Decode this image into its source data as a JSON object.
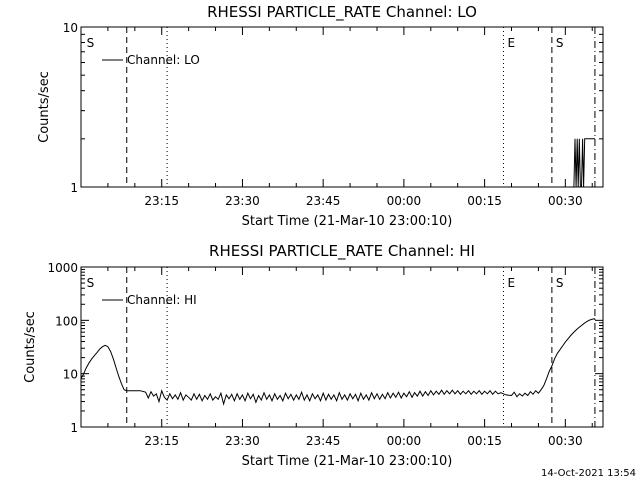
{
  "footer": {
    "timestamp": "14-Oct-2021 13:54"
  },
  "chart_data": [
    {
      "type": "line",
      "title": "RHESSI PARTICLE_RATE Channel: LO",
      "xlabel": "Start Time (21-Mar-10 23:00:10)",
      "ylabel": "Counts/sec",
      "yscale": "log",
      "ylim": [
        1,
        10
      ],
      "xlim_minutes": [
        0,
        97
      ],
      "y_ticks": [
        {
          "value": 1,
          "label": "1"
        },
        {
          "value": 10,
          "label": "10"
        }
      ],
      "x_ticks": [
        {
          "minute": 15,
          "label": "23:15"
        },
        {
          "minute": 30,
          "label": "23:30"
        },
        {
          "minute": 45,
          "label": "23:45"
        },
        {
          "minute": 60,
          "label": "00:00"
        },
        {
          "minute": 75,
          "label": "00:15"
        },
        {
          "minute": 90,
          "label": "00:30"
        }
      ],
      "legend": {
        "label": "Channel: LO",
        "position": "top-left"
      },
      "markers": [
        {
          "minute": 0.3,
          "label": "S",
          "style": "none"
        },
        {
          "minute": 8.5,
          "label": "",
          "style": "dashed"
        },
        {
          "minute": 16,
          "label": "",
          "style": "dotted"
        },
        {
          "minute": 78.5,
          "label": "E",
          "style": "dotted"
        },
        {
          "minute": 87.5,
          "label": "S",
          "style": "dashed"
        },
        {
          "minute": 95.5,
          "label": "",
          "style": "dashdot"
        }
      ],
      "series": [
        {
          "name": "Channel: LO",
          "points": [
            [
              91.6,
              1
            ],
            [
              91.8,
              2
            ],
            [
              92.0,
              1
            ],
            [
              92.2,
              2
            ],
            [
              92.4,
              1
            ],
            [
              92.6,
              2
            ],
            [
              92.8,
              1
            ],
            [
              93.0,
              1
            ],
            [
              93.2,
              2
            ],
            [
              93.4,
              1
            ],
            [
              93.6,
              2
            ],
            [
              93.8,
              2
            ],
            [
              94.0,
              2
            ],
            [
              94.6,
              2
            ],
            [
              95.0,
              2
            ],
            [
              95.5,
              2
            ]
          ]
        }
      ]
    },
    {
      "type": "line",
      "title": "RHESSI PARTICLE_RATE Channel: HI",
      "xlabel": "Start Time (21-Mar-10 23:00:10)",
      "ylabel": "Counts/sec",
      "yscale": "log",
      "ylim": [
        1,
        1000
      ],
      "xlim_minutes": [
        0,
        97
      ],
      "y_ticks": [
        {
          "value": 1,
          "label": "1"
        },
        {
          "value": 10,
          "label": "10"
        },
        {
          "value": 100,
          "label": "100"
        },
        {
          "value": 1000,
          "label": "1000"
        }
      ],
      "x_ticks": [
        {
          "minute": 15,
          "label": "23:15"
        },
        {
          "minute": 30,
          "label": "23:30"
        },
        {
          "minute": 45,
          "label": "23:45"
        },
        {
          "minute": 60,
          "label": "00:00"
        },
        {
          "minute": 75,
          "label": "00:15"
        },
        {
          "minute": 90,
          "label": "00:30"
        }
      ],
      "legend": {
        "label": "Channel: HI",
        "position": "top-left"
      },
      "markers": [
        {
          "minute": 0.3,
          "label": "S",
          "style": "none"
        },
        {
          "minute": 8.5,
          "label": "",
          "style": "dashed"
        },
        {
          "minute": 16,
          "label": "",
          "style": "dotted"
        },
        {
          "minute": 78.5,
          "label": "E",
          "style": "dotted"
        },
        {
          "minute": 87.5,
          "label": "S",
          "style": "dashed"
        },
        {
          "minute": 95.5,
          "label": "",
          "style": "dashdot"
        }
      ],
      "series": [
        {
          "name": "Channel: HI",
          "points": [
            [
              0,
              8
            ],
            [
              0.5,
              10
            ],
            [
              1,
              13
            ],
            [
              1.5,
              16
            ],
            [
              2,
              19
            ],
            [
              2.5,
              22
            ],
            [
              3,
              25
            ],
            [
              3.5,
              29
            ],
            [
              4,
              32
            ],
            [
              4.5,
              34
            ],
            [
              5,
              32
            ],
            [
              5.5,
              26
            ],
            [
              6,
              19
            ],
            [
              6.5,
              13
            ],
            [
              7,
              9
            ],
            [
              7.5,
              6.5
            ],
            [
              8,
              5
            ],
            [
              8.5,
              4.8
            ],
            [
              9,
              4.8
            ],
            [
              10,
              4.8
            ],
            [
              11,
              4.8
            ],
            [
              12,
              4.5
            ],
            [
              12.5,
              3.5
            ],
            [
              13,
              4.6
            ],
            [
              13.5,
              3.8
            ],
            [
              14,
              4.2
            ],
            [
              14.5,
              3
            ],
            [
              15,
              4.8
            ],
            [
              15.5,
              3.6
            ],
            [
              16,
              3.2
            ],
            [
              16.5,
              4.2
            ],
            [
              17,
              3.4
            ],
            [
              17.5,
              4
            ],
            [
              18,
              3.3
            ],
            [
              18.5,
              4.4
            ],
            [
              19,
              3.2
            ],
            [
              19.5,
              4
            ],
            [
              20,
              3.6
            ],
            [
              20.5,
              3.2
            ],
            [
              21,
              4.2
            ],
            [
              21.5,
              3.3
            ],
            [
              22,
              4.1
            ],
            [
              22.5,
              3.1
            ],
            [
              23,
              3.9
            ],
            [
              23.5,
              3.3
            ],
            [
              24,
              4.2
            ],
            [
              24.5,
              3.2
            ],
            [
              25,
              3.7
            ],
            [
              25.5,
              3.3
            ],
            [
              26,
              4.3
            ],
            [
              26.5,
              2.7
            ],
            [
              27,
              4
            ],
            [
              27.5,
              3.4
            ],
            [
              28,
              4.1
            ],
            [
              28.5,
              3.1
            ],
            [
              29,
              4.2
            ],
            [
              29.5,
              3.3
            ],
            [
              30,
              4
            ],
            [
              30.5,
              3.1
            ],
            [
              31,
              4.3
            ],
            [
              31.5,
              3.4
            ],
            [
              32,
              4.1
            ],
            [
              32.5,
              2.9
            ],
            [
              33,
              3.9
            ],
            [
              33.5,
              3.2
            ],
            [
              34,
              4.4
            ],
            [
              34.5,
              3.3
            ],
            [
              35,
              4
            ],
            [
              35.5,
              3.1
            ],
            [
              36,
              4.2
            ],
            [
              36.5,
              3.3
            ],
            [
              37,
              3.9
            ],
            [
              37.5,
              3.1
            ],
            [
              38,
              4.3
            ],
            [
              38.5,
              3.4
            ],
            [
              39,
              4.1
            ],
            [
              39.5,
              3.2
            ],
            [
              40,
              4
            ],
            [
              40.5,
              3.3
            ],
            [
              41,
              4.5
            ],
            [
              41.5,
              3.2
            ],
            [
              42,
              4
            ],
            [
              42.5,
              3.1
            ],
            [
              43,
              4.2
            ],
            [
              43.5,
              3.4
            ],
            [
              44,
              4
            ],
            [
              44.5,
              3.1
            ],
            [
              45,
              4.3
            ],
            [
              45.5,
              3.2
            ],
            [
              46,
              4.1
            ],
            [
              46.5,
              3.3
            ],
            [
              47,
              4
            ],
            [
              47.5,
              3.1
            ],
            [
              48,
              4.4
            ],
            [
              48.5,
              3.3
            ],
            [
              49,
              4
            ],
            [
              49.5,
              3.2
            ],
            [
              50,
              4.2
            ],
            [
              50.5,
              3.4
            ],
            [
              51,
              4.1
            ],
            [
              51.5,
              3.1
            ],
            [
              52,
              4.3
            ],
            [
              52.5,
              3.3
            ],
            [
              53,
              4
            ],
            [
              53.5,
              3.2
            ],
            [
              54,
              4.4
            ],
            [
              54.5,
              3.4
            ],
            [
              55,
              4.2
            ],
            [
              55.5,
              3.3
            ],
            [
              56,
              4.1
            ],
            [
              56.5,
              3.4
            ],
            [
              57,
              4.4
            ],
            [
              57.5,
              3.5
            ],
            [
              58,
              4.3
            ],
            [
              58.5,
              3.6
            ],
            [
              59,
              4.5
            ],
            [
              59.5,
              3.5
            ],
            [
              60,
              4.3
            ],
            [
              60.5,
              3.7
            ],
            [
              61,
              4.6
            ],
            [
              61.5,
              3.6
            ],
            [
              62,
              4.4
            ],
            [
              62.5,
              3.8
            ],
            [
              63,
              4.7
            ],
            [
              63.5,
              3.8
            ],
            [
              64,
              4.6
            ],
            [
              64.5,
              3.9
            ],
            [
              65,
              4.8
            ],
            [
              65.5,
              4
            ],
            [
              66,
              4.7
            ],
            [
              66.5,
              4.1
            ],
            [
              67,
              4.9
            ],
            [
              67.5,
              4.1
            ],
            [
              68,
              4.8
            ],
            [
              68.5,
              4.2
            ],
            [
              69,
              4.9
            ],
            [
              69.5,
              4.2
            ],
            [
              70,
              4.8
            ],
            [
              70.5,
              4.1
            ],
            [
              71,
              4.7
            ],
            [
              71.5,
              4.2
            ],
            [
              72,
              4.8
            ],
            [
              72.5,
              4.1
            ],
            [
              73,
              4.7
            ],
            [
              73.5,
              4.2
            ],
            [
              74,
              4.8
            ],
            [
              74.5,
              4.1
            ],
            [
              75,
              4.7
            ],
            [
              75.5,
              4.2
            ],
            [
              76,
              4.8
            ],
            [
              76.5,
              4.1
            ],
            [
              77,
              4.7
            ],
            [
              77.5,
              4.2
            ],
            [
              78,
              4.4
            ],
            [
              79,
              4
            ],
            [
              80,
              3.9
            ],
            [
              80.5,
              4.5
            ],
            [
              81,
              3.7
            ],
            [
              81.5,
              4.2
            ],
            [
              82,
              3.8
            ],
            [
              82.5,
              4.3
            ],
            [
              83,
              3.9
            ],
            [
              83.5,
              4.6
            ],
            [
              84,
              4.1
            ],
            [
              84.5,
              4.8
            ],
            [
              85,
              4.3
            ],
            [
              85.5,
              5
            ],
            [
              86,
              6
            ],
            [
              86.5,
              8
            ],
            [
              87,
              11
            ],
            [
              87.5,
              14
            ],
            [
              88,
              19
            ],
            [
              88.5,
              24
            ],
            [
              89,
              28
            ],
            [
              89.5,
              33
            ],
            [
              90,
              39
            ],
            [
              90.5,
              45
            ],
            [
              91,
              52
            ],
            [
              91.5,
              59
            ],
            [
              92,
              66
            ],
            [
              92.5,
              73
            ],
            [
              93,
              80
            ],
            [
              93.5,
              88
            ],
            [
              94,
              95
            ],
            [
              94.5,
              101
            ],
            [
              95,
              105
            ],
            [
              95.5,
              108
            ]
          ]
        }
      ]
    }
  ]
}
